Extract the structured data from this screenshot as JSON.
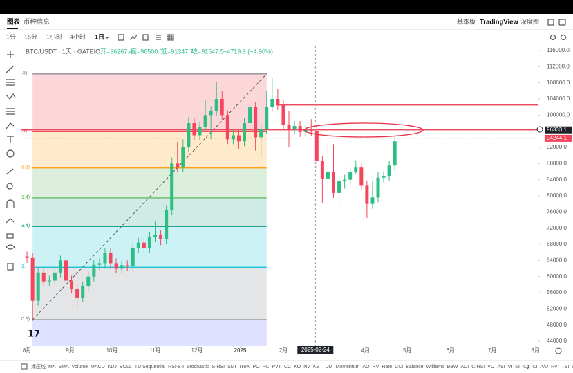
{
  "tabs": [
    "图表",
    "币种信息"
  ],
  "views": [
    "基本版",
    "TradingView",
    "深度图"
  ],
  "intervals": [
    "1分",
    "15分",
    "1小时",
    "4小时",
    "1日"
  ],
  "legend": {
    "symbol": "BTC/USDT · 1天 · GATEIO",
    "open": "开=96267.4",
    "high": "高=96500.0",
    "low": "低=91347.7",
    "close": "收=91547.5",
    "change": "−4719.9 (−4.90%)"
  },
  "indicators": [
    "撑压线",
    "MA",
    "EMA",
    "Volume",
    "MACD",
    "KDJ",
    "BOLL",
    "TD Sequential",
    "RSI-S-I",
    "Stochastic",
    "S-RSI",
    "SMI",
    "TRIX",
    "PO",
    "PC",
    "PVT",
    "CC",
    "KO",
    "NV",
    "KST",
    "DM",
    "Momentum",
    "AO",
    "HV",
    "Rate",
    "CCI",
    "Balance",
    "Williams",
    "BBW",
    "ADI",
    "C-RSI",
    "VO",
    "ASI",
    "VI",
    "MI",
    "CZ",
    "CI",
    "A/D",
    "RVI",
    "TSI",
    "AT"
  ],
  "chart_data": {
    "type": "candlestick",
    "up_color": "#2ebd85",
    "down_color": "#f6465d",
    "x": [
      0,
      4,
      8,
      12,
      16,
      20,
      24,
      28,
      32,
      36,
      40,
      44,
      48,
      52,
      56,
      60,
      64,
      68,
      72,
      76,
      80,
      84,
      88,
      92,
      96,
      100,
      104,
      108,
      112,
      116,
      120,
      124,
      128,
      132,
      136,
      140,
      144,
      148,
      152,
      156,
      160,
      164,
      168,
      172,
      176,
      180,
      184,
      188,
      192,
      196,
      200,
      204,
      208,
      212,
      216,
      220,
      224,
      228,
      232,
      236,
      240,
      244,
      248,
      252,
      256,
      260,
      264
    ],
    "open": [
      65000,
      64600,
      54000,
      61000,
      58800,
      59000,
      61000,
      64000,
      59000,
      57000,
      54800,
      57600,
      60000,
      62900,
      63300,
      65800,
      63300,
      62100,
      62800,
      62500,
      67000,
      68400,
      67000,
      69900,
      70300,
      69300,
      76500,
      88000,
      87000,
      92000,
      98000,
      95000,
      97000,
      100000,
      101000,
      104000,
      100000,
      94000,
      95000,
      93500,
      98000,
      102000,
      94500,
      96500,
      102000,
      104000,
      102500,
      97500,
      96500,
      97300,
      95800,
      96300,
      96000,
      88600,
      84300,
      86000,
      80700,
      83700,
      84000,
      86000,
      87000,
      82500,
      78000,
      79600,
      84500,
      84900,
      87500
    ],
    "high": [
      66200,
      65800,
      62200,
      62200,
      60200,
      62200,
      65200,
      65200,
      60200,
      58200,
      58800,
      61200,
      64100,
      64500,
      67000,
      67000,
      64500,
      64000,
      64000,
      68200,
      69600,
      69600,
      71100,
      73600,
      71500,
      77700,
      89500,
      93400,
      94000,
      99500,
      99200,
      98200,
      103800,
      102200,
      108300,
      106000,
      101200,
      96200,
      96200,
      99200,
      102700,
      103200,
      97700,
      106000,
      109300,
      106500,
      103700,
      101000,
      98500,
      98500,
      97500,
      99000,
      97200,
      89800,
      94500,
      92800,
      84900,
      85200,
      87200,
      88800,
      88200,
      83700,
      83500,
      86000,
      86100,
      88700,
      94700
    ],
    "low": [
      63400,
      49000,
      52800,
      57600,
      57600,
      57800,
      59800,
      57800,
      55800,
      52600,
      53600,
      56400,
      58800,
      61700,
      62100,
      62100,
      60900,
      60900,
      61300,
      61300,
      65800,
      65800,
      65800,
      68700,
      67800,
      68100,
      75300,
      85800,
      85800,
      90800,
      93800,
      93800,
      95800,
      94000,
      99800,
      98800,
      92800,
      92800,
      91500,
      92300,
      96800,
      91200,
      89500,
      95300,
      100800,
      101300,
      96300,
      92000,
      95300,
      94600,
      94600,
      94800,
      86800,
      78200,
      82000,
      79500,
      76600,
      81800,
      82800,
      85300,
      81300,
      74500,
      76800,
      78400,
      83300,
      83700,
      86300
    ],
    "close": [
      64600,
      54000,
      61000,
      58800,
      59000,
      61000,
      64000,
      59000,
      57000,
      54800,
      57600,
      60000,
      62900,
      63300,
      65800,
      63300,
      62100,
      62800,
      62500,
      67000,
      68400,
      67000,
      69900,
      70300,
      69300,
      76500,
      88000,
      87000,
      92000,
      98000,
      95000,
      97000,
      100000,
      101000,
      104000,
      100000,
      94000,
      95000,
      93500,
      98000,
      102000,
      94500,
      96500,
      102000,
      104000,
      102500,
      97500,
      96500,
      97300,
      95800,
      96300,
      96000,
      88600,
      84300,
      86000,
      80700,
      83700,
      84000,
      86000,
      87000,
      82500,
      78000,
      79600,
      84500,
      84900,
      87500,
      93500
    ],
    "xlim": [
      -4.5,
      366.6
    ],
    "ylim": [
      42800,
      117200
    ],
    "xticks": [
      {
        "value": 0,
        "label": "8月"
      },
      {
        "value": 31,
        "label": "9月"
      },
      {
        "value": 61,
        "label": "10月"
      },
      {
        "value": 92,
        "label": "11月"
      },
      {
        "value": 122,
        "label": "12月"
      },
      153,
      {
        "value": 184,
        "label": "2月"
      },
      {
        "value": 212,
        "label": "3月"
      },
      {
        "value": 243,
        "label": "4月"
      },
      {
        "value": 273,
        "label": "5月"
      },
      {
        "value": 304,
        "label": "6月"
      },
      {
        "value": 334,
        "label": "7月"
      },
      {
        "value": 365,
        "label": "8月"
      }
    ],
    "xtick_153_label": "2025",
    "yticks": [
      {
        "value": 116000,
        "label": "116000.0"
      },
      {
        "value": 112000,
        "label": "112000.0"
      },
      {
        "value": 108000,
        "label": "108000.0"
      },
      {
        "value": 104000,
        "label": "104000.0"
      },
      {
        "value": 100000,
        "label": "100000.0"
      },
      {
        "value": 96000,
        "label": "96000.0"
      },
      {
        "value": 92000,
        "label": "92000.0"
      },
      {
        "value": 88000,
        "label": "88000.0"
      },
      {
        "value": 84000,
        "label": "84000.0"
      },
      {
        "value": 80000,
        "label": "80000.0"
      },
      {
        "value": 76000,
        "label": "76000.0"
      },
      {
        "value": 72000,
        "label": "72000.0"
      },
      {
        "value": 68000,
        "label": "68000.0"
      },
      {
        "value": 64000,
        "label": "64000.0"
      },
      {
        "value": 60000,
        "label": "60000.0"
      },
      {
        "value": 56000,
        "label": "56000.0"
      },
      {
        "value": 52000,
        "label": "52000.0"
      },
      {
        "value": 48000,
        "label": "48000.0"
      },
      {
        "value": 44000,
        "label": "44000.0"
      }
    ],
    "crosshair": {
      "x": 207,
      "label": "2025-02-24"
    },
    "price_lines": [
      {
        "value": 102500,
        "color": "#e8334a"
      },
      {
        "value": 96333.1,
        "color": "#e8334a"
      },
      {
        "value": 94244.1,
        "color": "#f4a0aa"
      }
    ],
    "price_labels": [
      {
        "value": 96333.1,
        "color": "#1e2329"
      },
      {
        "value": 94244.1,
        "color": "#f6465d"
      }
    ],
    "fib": {
      "x": [
        4,
        172
      ],
      "levels": [
        110200,
        95900,
        86900,
        79500,
        72400,
        62300,
        49300
      ],
      "labels": [
        ".8)",
        ".9)",
        "3.3)",
        "1.4)",
        "3.4)",
        "1.",
        "0.9)"
      ],
      "colors": [
        "#787b86",
        "#f23645",
        "#ff9800",
        "#4caf50",
        "#089981",
        "#00bcd4",
        "#787b86"
      ],
      "fills": [
        "rgba(242,54,69,0.2)",
        "rgba(255,152,0,0.2)",
        "rgba(76,175,80,0.2)",
        "rgba(8,153,129,0.2)",
        "rgba(0,188,212,0.2)",
        "rgba(120,123,134,0.2)",
        "rgba(103,120,255,0.22)"
      ]
    }
  }
}
